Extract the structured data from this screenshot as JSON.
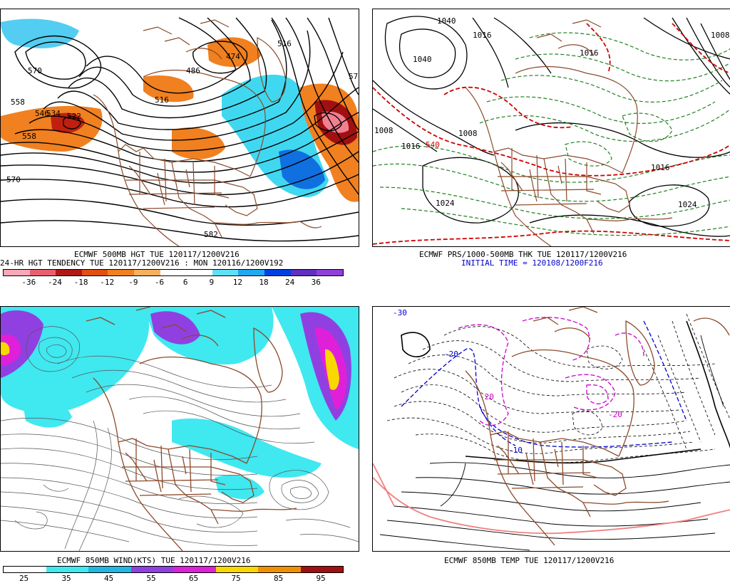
{
  "panel1": {
    "caption1": "ECMWF 500MB HGT TUE 120117/1200V216",
    "caption2": "24-HR HGT TENDENCY TUE 120117/1200V216 : MON 120116/1200V192",
    "colorbar": {
      "colors": [
        "#f8a8b8",
        "#e86070",
        "#b01818",
        "#e05010",
        "#f08020",
        "#f8b060",
        "#ffffff",
        "#ffffff",
        "#60e0f8",
        "#20a8f0",
        "#0040e0",
        "#6030c0",
        "#9040d8"
      ],
      "ticks": [
        "-36",
        "-24",
        "-18",
        "-12",
        "-9",
        "-6",
        "6",
        "9",
        "12",
        "18",
        "24",
        "36"
      ]
    },
    "contour_labels": [
      "570",
      "558",
      "522",
      "534",
      "546",
      "558",
      "570",
      "582",
      "474",
      "486",
      "516",
      "516",
      "57"
    ]
  },
  "panel2": {
    "caption1": "ECMWF PRS/1000-500MB THK TUE 120117/1200V216",
    "caption2": "INITIAL TIME = 120108/1200F216",
    "contour_labels": [
      "1040",
      "1016",
      "1040",
      "1008",
      "1016",
      "1024",
      "1024",
      "1016",
      "1008",
      "540",
      "1016",
      "1008"
    ]
  },
  "panel3": {
    "caption1": "ECMWF 850MB WIND(KTS) TUE 120117/1200V216",
    "colorbar": {
      "colors": [
        "#ffffff",
        "#40e8f0",
        "#20b8e0",
        "#9040e0",
        "#e020d8",
        "#f8d800",
        "#f09000",
        "#a01010"
      ],
      "ticks": [
        "25",
        "35",
        "45",
        "55",
        "65",
        "75",
        "85",
        "95"
      ]
    }
  },
  "panel4": {
    "caption1": "ECMWF 850MB TEMP TUE 120117/1200V216",
    "contour_labels": [
      "-30",
      "-20",
      "-20",
      "-10",
      "-20"
    ]
  },
  "colors": {
    "coast": "#8b4a2b",
    "height_contour": "#000000",
    "thickness_red": "#d00000",
    "thickness_green": "#208020",
    "temp_blue": "#0000cc",
    "temp_magenta": "#cc00cc",
    "temp_pink": "#f08080"
  }
}
